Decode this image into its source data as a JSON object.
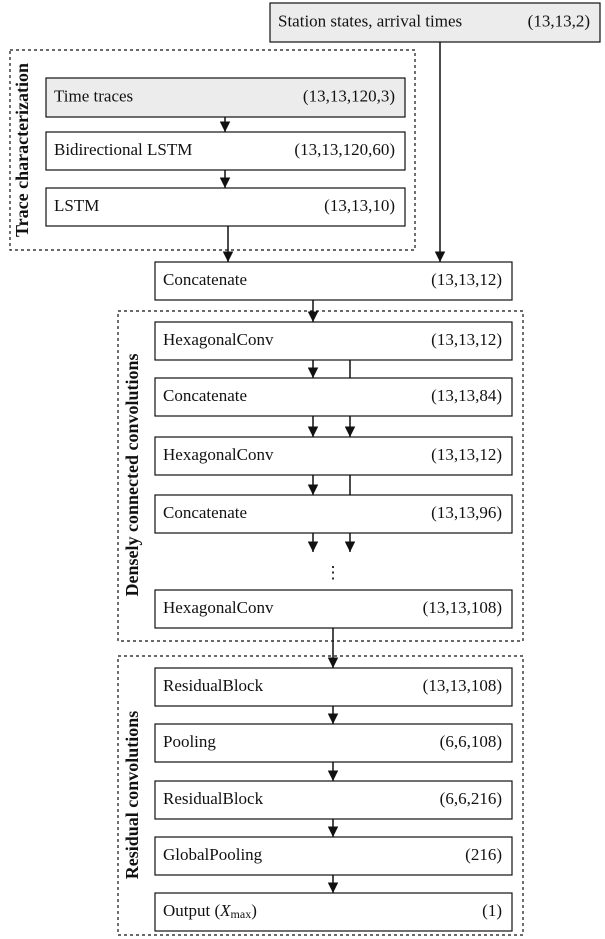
{
  "groups": [
    {
      "label": "Trace characterization"
    },
    {
      "label": "Densely connected convolutions"
    },
    {
      "label": "Residual convolutions"
    }
  ],
  "nodes": [
    {
      "label": "Station states, arrival times",
      "shape": "(13,13,2)"
    },
    {
      "label": "Time traces",
      "shape": "(13,13,120,3)"
    },
    {
      "label": "Bidirectional LSTM",
      "shape": "(13,13,120,60)"
    },
    {
      "label": "LSTM",
      "shape": "(13,13,10)"
    },
    {
      "label": "Concatenate",
      "shape": "(13,13,12)"
    },
    {
      "label": "HexagonalConv",
      "shape": "(13,13,12)"
    },
    {
      "label": "Concatenate",
      "shape": "(13,13,84)"
    },
    {
      "label": "HexagonalConv",
      "shape": "(13,13,12)"
    },
    {
      "label": "Concatenate",
      "shape": "(13,13,96)"
    },
    {
      "label": "HexagonalConv",
      "shape": "(13,13,108)"
    },
    {
      "label": "ResidualBlock",
      "shape": "(13,13,108)"
    },
    {
      "label": "Pooling",
      "shape": "(6,6,108)"
    },
    {
      "label": "ResidualBlock",
      "shape": "(6,6,216)"
    },
    {
      "label": "GlobalPooling",
      "shape": "(216)"
    },
    {
      "label_parts": [
        "Output (",
        "X",
        "max",
        ")"
      ],
      "shape": "(1)"
    }
  ],
  "ellipsis": "⋮"
}
